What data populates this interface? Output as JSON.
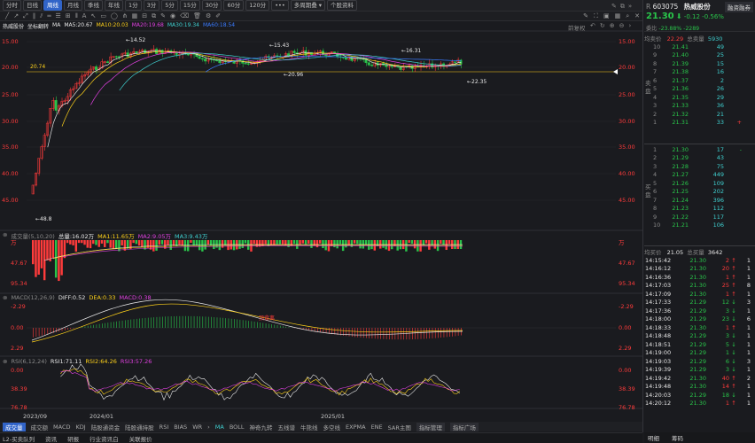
{
  "toolbar": {
    "period_tabs": [
      {
        "label": "分时",
        "active": false
      },
      {
        "label": "日线",
        "active": false
      },
      {
        "label": "周线",
        "active": true
      },
      {
        "label": "月线",
        "active": false
      },
      {
        "label": "季线",
        "active": false
      },
      {
        "label": "年线",
        "active": false
      },
      {
        "label": "1分",
        "active": false
      },
      {
        "label": "3分",
        "active": false
      },
      {
        "label": "5分",
        "active": false
      },
      {
        "label": "15分",
        "active": false
      },
      {
        "label": "30分",
        "active": false
      },
      {
        "label": "60分",
        "active": false
      },
      {
        "label": "120分",
        "active": false
      }
    ],
    "more_label": "•••",
    "multi_period_label": "多周期叠",
    "stock_info_label": "个股资料",
    "prev_adjust_label": "前复权"
  },
  "legend": {
    "stock_name": "热威股份",
    "coord_label": "坐标翻转",
    "ma_title": "MA",
    "ma5": "MA5:20.67",
    "ma10": "MA10:20.03",
    "ma20": "MA20:19.68",
    "ma30": "MA30:19.34",
    "ma60": "MA60:18.54"
  },
  "price_axis": [
    "15.00",
    "20.00",
    "25.00",
    "30.00",
    "35.00",
    "40.00",
    "45.00"
  ],
  "price_annotations": {
    "high1": "14.52",
    "high2": "15.43",
    "high3": "16.31",
    "low1": "20.96",
    "low2": "22.35",
    "bottom": "48.8",
    "ref_line": "20.74"
  },
  "volume": {
    "title": "成交量(5,10,20)",
    "total": "总量:16.02万",
    "ma1": "MA1:11.65万",
    "ma2": "MA2:9.05万",
    "ma3": "MA3:9.43万",
    "axis": [
      "万",
      "47.67",
      "95.34"
    ],
    "axis_right": [
      "万",
      "47.67",
      "95.34"
    ]
  },
  "macd": {
    "title": "MACD(12,26,9)",
    "diff": "DIFF:0.52",
    "dea": "DEA:0.33",
    "macd": "MACD:0.38",
    "axis": [
      "-2.29",
      "0.00",
      "2.29"
    ],
    "mid_label": "顶背离"
  },
  "rsi": {
    "title": "RSI(6,12,24)",
    "rsi1": "RSI1:71.11",
    "rsi2": "RSI2:64.26",
    "rsi3": "RSI3:57.26",
    "axis": [
      "0.00",
      "38.39",
      "76.78"
    ]
  },
  "x_axis": [
    "2023/09",
    "2024/01",
    "2025/01"
  ],
  "indicator_tabs": [
    {
      "label": "成交量",
      "active": true
    },
    {
      "label": "成交额",
      "active": false
    },
    {
      "label": "MACD",
      "active": false
    },
    {
      "label": "KDJ",
      "active": false
    },
    {
      "label": "陆股通资金",
      "active": false
    },
    {
      "label": "陆股通持股",
      "active": false
    },
    {
      "label": "RSI",
      "active": false
    },
    {
      "label": "BIAS",
      "active": false
    },
    {
      "label": "WR",
      "active": false
    }
  ],
  "overlay_tabs": [
    "MA",
    "BOLL",
    "神奇九转",
    "五线谱",
    "牛熊线",
    "多空线",
    "EXPMA",
    "ENE",
    "SAR主图"
  ],
  "overlay_buttons": [
    "指标管理",
    "指标广场"
  ],
  "stock": {
    "code_prefix": "R",
    "code": "603075",
    "name": "热威股份",
    "finance_btn": "融资融券",
    "price": "21.30",
    "change": "-0.12",
    "change_pct": "-0.56%",
    "weibi_label": "委比",
    "weibi": "-23.88%",
    "weicha": "-2289",
    "avg_sell_label": "均卖价",
    "avg_sell": "22.29",
    "total_sell_label": "总卖量",
    "total_sell": "5930",
    "avg_buy_label": "均买价",
    "avg_buy": "21.05",
    "total_buy_label": "总买量",
    "total_buy": "3642"
  },
  "asks": [
    {
      "level": "10",
      "price": "21.41",
      "vol": "49"
    },
    {
      "level": "9",
      "price": "21.40",
      "vol": "25"
    },
    {
      "level": "8",
      "price": "21.39",
      "vol": "15"
    },
    {
      "level": "7",
      "price": "21.38",
      "vol": "16"
    },
    {
      "level": "6",
      "price": "21.37",
      "vol": "2"
    },
    {
      "level": "5",
      "price": "21.36",
      "vol": "26"
    },
    {
      "level": "4",
      "price": "21.35",
      "vol": "29"
    },
    {
      "level": "3",
      "price": "21.33",
      "vol": "36"
    },
    {
      "level": "2",
      "price": "21.32",
      "vol": "21"
    },
    {
      "level": "1",
      "price": "21.31",
      "vol": "33",
      "extra": "+"
    }
  ],
  "bids": [
    {
      "level": "1",
      "price": "21.30",
      "vol": "17",
      "extra": "-"
    },
    {
      "level": "2",
      "price": "21.29",
      "vol": "43"
    },
    {
      "level": "3",
      "price": "21.28",
      "vol": "75"
    },
    {
      "level": "4",
      "price": "21.27",
      "vol": "449"
    },
    {
      "level": "5",
      "price": "21.26",
      "vol": "109"
    },
    {
      "level": "6",
      "price": "21.25",
      "vol": "202"
    },
    {
      "level": "7",
      "price": "21.24",
      "vol": "396"
    },
    {
      "level": "8",
      "price": "21.23",
      "vol": "112"
    },
    {
      "level": "9",
      "price": "21.22",
      "vol": "117"
    },
    {
      "level": "10",
      "price": "21.21",
      "vol": "106"
    }
  ],
  "ask_side_label": "卖盘",
  "bid_side_label": "买盘",
  "trades": [
    {
      "time": "14:15:42",
      "price": "21.30",
      "vol": "2",
      "dir": "up",
      "n": "1"
    },
    {
      "time": "14:16:12",
      "price": "21.30",
      "vol": "20",
      "dir": "up",
      "n": "1"
    },
    {
      "time": "14:16:36",
      "price": "21.30",
      "vol": "1",
      "dir": "up",
      "n": "1"
    },
    {
      "time": "14:17:03",
      "price": "21.30",
      "vol": "25",
      "dir": "up",
      "n": "8"
    },
    {
      "time": "14:17:09",
      "price": "21.30",
      "vol": "1",
      "dir": "up",
      "n": "1"
    },
    {
      "time": "14:17:33",
      "price": "21.29",
      "vol": "12",
      "dir": "down",
      "n": "3"
    },
    {
      "time": "14:17:36",
      "price": "21.29",
      "vol": "3",
      "dir": "down",
      "n": "1"
    },
    {
      "time": "14:18:00",
      "price": "21.29",
      "vol": "23",
      "dir": "down",
      "n": "6"
    },
    {
      "time": "14:18:33",
      "price": "21.30",
      "vol": "1",
      "dir": "up",
      "n": "1"
    },
    {
      "time": "14:18:48",
      "price": "21.29",
      "vol": "3",
      "dir": "down",
      "n": "1"
    },
    {
      "time": "14:18:51",
      "price": "21.29",
      "vol": "5",
      "dir": "down",
      "n": "1"
    },
    {
      "time": "14:19:00",
      "price": "21.29",
      "vol": "1",
      "dir": "down",
      "n": "1"
    },
    {
      "time": "14:19:03",
      "price": "21.29",
      "vol": "6",
      "dir": "down",
      "n": "3"
    },
    {
      "time": "14:19:39",
      "price": "21.29",
      "vol": "3",
      "dir": "down",
      "n": "1"
    },
    {
      "time": "14:19:42",
      "price": "21.30",
      "vol": "40",
      "dir": "up",
      "n": "2"
    },
    {
      "time": "14:19:48",
      "price": "21.30",
      "vol": "14",
      "dir": "up",
      "n": "1"
    },
    {
      "time": "14:20:03",
      "price": "21.29",
      "vol": "18",
      "dir": "down",
      "n": "1"
    },
    {
      "time": "14:20:12",
      "price": "21.30",
      "vol": "1",
      "dir": "up",
      "n": "1"
    }
  ],
  "right_bottom_tabs": [
    "明细",
    "筹码"
  ],
  "status_bar": [
    "L2-买卖队列",
    "资讯",
    "研报",
    "行业资讯白",
    "关联报价"
  ],
  "colors": {
    "up": "#ff3b3b",
    "down": "#29c44a",
    "ma5": "#e8e8e8",
    "ma10": "#ffd21a",
    "ma20": "#e040e0",
    "ma30": "#3fd0d0",
    "ma60": "#3a7bff"
  }
}
